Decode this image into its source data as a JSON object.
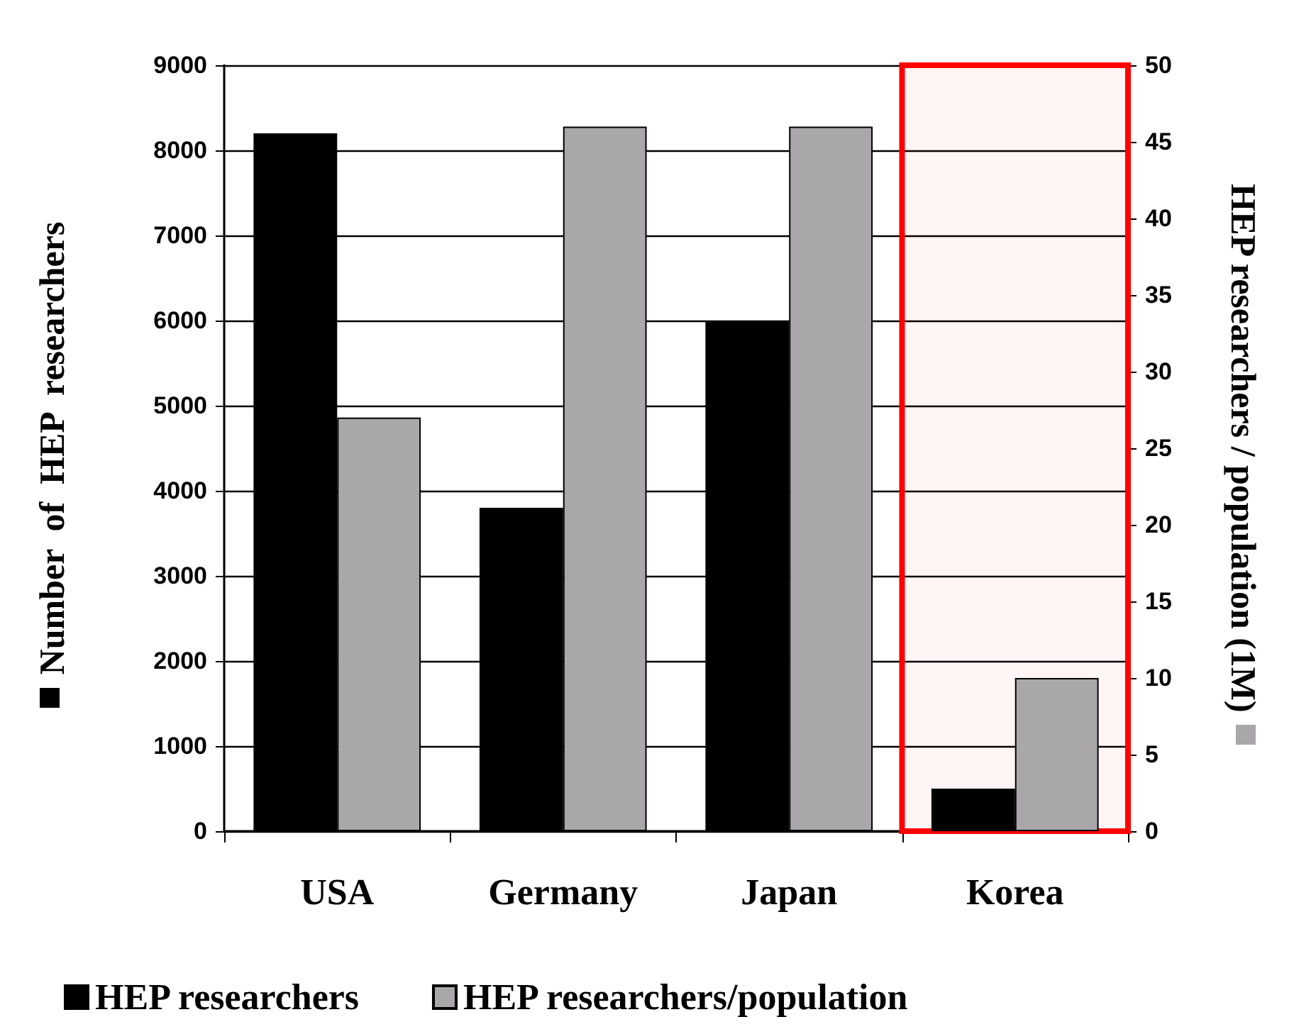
{
  "chart_data": {
    "type": "bar",
    "categories": [
      "USA",
      "Germany",
      "Japan",
      "Korea"
    ],
    "series": [
      {
        "name": "HEP researchers",
        "color": "#000000",
        "values": [
          8200,
          3800,
          6000,
          500
        ]
      },
      {
        "name": "HEP researchers/population",
        "color": "#aaa7aa",
        "values": [
          27,
          46,
          46,
          10
        ],
        "axis": "y2"
      }
    ],
    "ylabel": "Number  of  HEP  researchers",
    "y2label": "HEP researchers / population (1M)",
    "ylim": [
      0,
      9000
    ],
    "yticks": [
      0,
      1000,
      2000,
      3000,
      4000,
      5000,
      6000,
      7000,
      8000,
      9000
    ],
    "y2lim": [
      0,
      50
    ],
    "y2ticks": [
      0,
      5,
      10,
      15,
      20,
      25,
      30,
      35,
      40,
      45,
      50
    ],
    "bands": [
      {
        "axis": "x",
        "from": "Korea",
        "to": "Korea",
        "color": "#ff0000"
      }
    ],
    "grid": "y",
    "legend": "bottom"
  }
}
